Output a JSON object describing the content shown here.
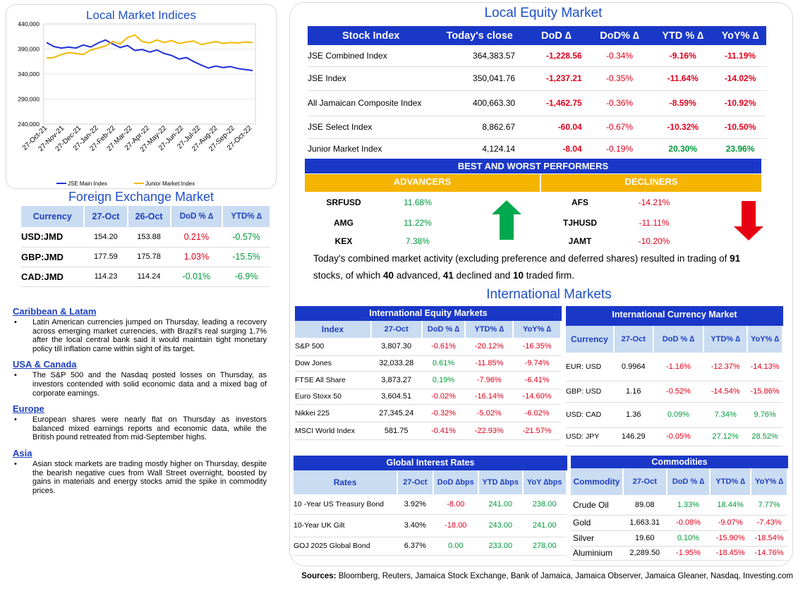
{
  "chart": {
    "title": "Local Market Indices",
    "legend": [
      "JSE Main Index",
      "Junior Market Index"
    ]
  },
  "chart_data": {
    "type": "line",
    "title": "Local Market Indices",
    "ylim": [
      240000,
      440000
    ],
    "y_ticks": [
      "440,000",
      "390,000",
      "340,000",
      "290,000",
      "240,000"
    ],
    "y_tick_values": [
      440000,
      390000,
      340000,
      290000,
      240000
    ],
    "x_ticks": [
      "27-Oct-21",
      "27-Nov-21",
      "27-Dec-21",
      "27-Jan-22",
      "27-Feb-22",
      "27-Mar-22",
      "27-Apr-22",
      "27-May-22",
      "27-Jun-22",
      "27-Jul-22",
      "27-Aug-22",
      "27-Sep-22",
      "27-Oct-22"
    ],
    "series": [
      {
        "name": "JSE Main Index",
        "color": "#1f2fd8",
        "values": [
          403000,
          395000,
          392000,
          394000,
          392000,
          398000,
          394000,
          402000,
          408000,
          400000,
          393000,
          397000,
          387000,
          389000,
          384000,
          388000,
          381000,
          377000,
          370000,
          373000,
          365000,
          358000,
          352000,
          356000,
          353000,
          355000,
          351000,
          349000,
          347000
        ]
      },
      {
        "name": "Junior Market Index",
        "color": "#f5b800",
        "values": [
          372000,
          373000,
          379000,
          383000,
          381000,
          379000,
          388000,
          392000,
          396000,
          405000,
          400000,
          413000,
          418000,
          405000,
          402000,
          408000,
          403000,
          407000,
          401000,
          404000,
          406000,
          399000,
          402000,
          405000,
          401000,
          403000,
          402000,
          404000,
          403000
        ]
      }
    ]
  },
  "fx": {
    "title": "Foreign Exchange Market",
    "headers": [
      "Currency",
      "27-Oct",
      "26-Oct",
      "DoD % ∆",
      "YTD% ∆"
    ],
    "rows": [
      {
        "cur": "USD:JMD",
        "a": "154.20",
        "b": "153.88",
        "dod": "0.21%",
        "ytd": "-0.57%",
        "dod_c": "neg",
        "ytd_c": "pos"
      },
      {
        "cur": "GBP:JMD",
        "a": "177.59",
        "b": "175.78",
        "dod": "1.03%",
        "ytd": "-15.5%",
        "dod_c": "neg",
        "ytd_c": "pos"
      },
      {
        "cur": "CAD:JMD",
        "a": "114.23",
        "b": "114.24",
        "dod": "-0.01%",
        "ytd": "-6.9%",
        "dod_c": "pos",
        "ytd_c": "pos"
      }
    ]
  },
  "news": [
    {
      "heading": "Caribbean & Latam",
      "text": "Latin American currencies jumped on Thursday, leading a recovery across emerging market currencies, with Brazil's real surging 1.7% after the local central bank said it would maintain tight monetary policy till inflation came within sight of its target."
    },
    {
      "heading": "USA & Canada",
      "text": "The S&P 500 and the Nasdaq posted losses on Thursday, as investors contended with solid economic data and a mixed bag of corporate earnings."
    },
    {
      "heading": "Europe",
      "text": "European shares were nearly flat on Thursday as investors balanced mixed earnings reports and economic data, while the British pound retreated from mid-September highs."
    },
    {
      "heading": "Asia",
      "text": "Asian stock markets are trading mostly higher on Thursday, despite the bearish negative cues from Wall Street overnight, boosted by gains in materials and energy stocks amid the spike in commodity prices."
    }
  ],
  "equity": {
    "title": "Local Equity Market",
    "headers": [
      "Stock Index",
      "Today's close",
      "DoD  ∆",
      "DoD% ∆",
      "YTD % ∆",
      "YoY% ∆"
    ],
    "rows": [
      {
        "name": "JSE Combined Index",
        "close": "364,383.57",
        "dod": "-1,228.56",
        "dodp": "-0.34%",
        "ytd": "-9.16%",
        "yoy": "-11.19%",
        "c": [
          "neg",
          "neg",
          "neg",
          "neg"
        ]
      },
      {
        "name": "JSE Index",
        "close": "350,041.76",
        "dod": "-1,237.21",
        "dodp": "-0.35%",
        "ytd": "-11.64%",
        "yoy": "-14.02%",
        "c": [
          "neg",
          "neg",
          "neg",
          "neg"
        ]
      },
      {
        "name": "All Jamaican Composite Index",
        "close": "400,663.30",
        "dod": "-1,462.75",
        "dodp": "-0.36%",
        "ytd": "-8.59%",
        "yoy": "-10.92%",
        "c": [
          "neg",
          "neg",
          "neg",
          "neg"
        ]
      },
      {
        "name": "JSE Select Index",
        "close": "8,862.67",
        "dod": "-60.04",
        "dodp": "-0.67%",
        "ytd": "-10.32%",
        "yoy": "-10.50%",
        "c": [
          "neg",
          "neg",
          "neg",
          "neg"
        ]
      },
      {
        "name": "Junior Market Index",
        "close": "4,124.14",
        "dod": "-8.04",
        "dodp": "-0.19%",
        "ytd": "20.30%",
        "yoy": "23.96%",
        "c": [
          "neg",
          "neg",
          "pos",
          "pos"
        ]
      }
    ]
  },
  "performers": {
    "title": "BEST AND WORST PERFORMERS",
    "adv_label": "ADVANCERS",
    "dec_label": "DECLINERS",
    "advancers": [
      {
        "t": "SRFUSD",
        "v": "11.68%"
      },
      {
        "t": "AMG",
        "v": "11.22%"
      },
      {
        "t": "KEX",
        "v": "7.38%"
      }
    ],
    "decliners": [
      {
        "t": "AFS",
        "v": "-14.21%"
      },
      {
        "t": "TJHUSD",
        "v": "-11.11%"
      },
      {
        "t": "JAMT",
        "v": "-10.20%"
      }
    ]
  },
  "summary": {
    "p1": "Today's combined market activity (excluding preference and deferred shares) resulted in trading of ",
    "n1": "91",
    "p2": "stocks, of which ",
    "n2": "40",
    "p3": " advanced, ",
    "n3": "41",
    "p4": " declined and ",
    "n4": "10",
    "p5": " traded firm."
  },
  "intl": {
    "title": "International Markets",
    "eq_title": "International Equity Markets",
    "eq_headers": [
      "Index",
      "27-Oct",
      "DoD % ∆",
      "YTD% ∆",
      "YoY% ∆"
    ],
    "eq_rows": [
      {
        "n": "S&P 500",
        "v": "3,807.30",
        "d": "-0.61%",
        "y": "-20.12%",
        "yy": "-16.35%",
        "c": [
          "neg",
          "neg",
          "neg"
        ]
      },
      {
        "n": "Dow Jones",
        "v": "32,033.28",
        "d": "0.61%",
        "y": "-11.85%",
        "yy": "-9.74%",
        "c": [
          "pos",
          "neg",
          "neg"
        ]
      },
      {
        "n": "FTSE All Share",
        "v": "3,873.27",
        "d": "0.19%",
        "y": "-7.96%",
        "yy": "-6.41%",
        "c": [
          "pos",
          "neg",
          "neg"
        ]
      },
      {
        "n": "Euro Stoxx 50",
        "v": "3,604.51",
        "d": "-0.02%",
        "y": "-16.14%",
        "yy": "-14.60%",
        "c": [
          "neg",
          "neg",
          "neg"
        ]
      },
      {
        "n": "Nikkei 225",
        "v": "27,345.24",
        "d": "-0.32%",
        "y": "-5.02%",
        "yy": "-6.02%",
        "c": [
          "neg",
          "neg",
          "neg"
        ]
      },
      {
        "n": "MSCI World Index",
        "v": "581.75",
        "d": "-0.41%",
        "y": "-22.93%",
        "yy": "-21.57%",
        "c": [
          "neg",
          "neg",
          "neg"
        ]
      }
    ],
    "cur_title": "International Currency Market",
    "cur_headers": [
      "Currency",
      "27-Oct",
      "DoD % ∆",
      "YTD% ∆",
      "YoY% ∆"
    ],
    "cur_rows": [
      {
        "n": "EUR: USD",
        "v": "0.9964",
        "d": "-1.16%",
        "y": "-12.37%",
        "yy": "-14.13%",
        "c": [
          "neg",
          "neg",
          "neg"
        ]
      },
      {
        "n": "GBP: USD",
        "v": "1.16",
        "d": "-0.52%",
        "y": "-14.54%",
        "yy": "-15.86%",
        "c": [
          "neg",
          "neg",
          "neg"
        ]
      },
      {
        "n": "USD: CAD",
        "v": "1.36",
        "d": "0.09%",
        "y": "7.34%",
        "yy": "9.76%",
        "c": [
          "pos",
          "pos",
          "pos"
        ]
      },
      {
        "n": "USD: JPY",
        "v": "146.29",
        "d": "-0.05%",
        "y": "27.12%",
        "yy": "28.52%",
        "c": [
          "neg",
          "pos",
          "pos"
        ]
      }
    ],
    "rates_title": "Global Interest Rates",
    "rates_headers": [
      "Rates",
      "27-Oct",
      "DoD ∆bps",
      "YTD ∆bps",
      "YoY ∆bps"
    ],
    "rates_rows": [
      {
        "n": "10 -Year US Treasury Bond",
        "v": "3.92%",
        "d": "-8.00",
        "y": "241.00",
        "yy": "238.00",
        "c": [
          "neg",
          "pos",
          "pos"
        ]
      },
      {
        "n": "10-Year UK Gilt",
        "v": "3.40%",
        "d": "-18.00",
        "y": "243.00",
        "yy": "241.00",
        "c": [
          "neg",
          "pos",
          "pos"
        ]
      },
      {
        "n": "GOJ 2025 Global Bond",
        "v": "6.37%",
        "d": "0.00",
        "y": "233.00",
        "yy": "278.00",
        "c": [
          "pos",
          "pos",
          "pos"
        ]
      }
    ],
    "com_title": "Commodities",
    "com_headers": [
      "Commodity",
      "27-Oct",
      "DoD % ∆",
      "YTD% ∆",
      "YoY% ∆"
    ],
    "com_rows": [
      {
        "n": "Crude Oil",
        "v": "89.08",
        "d": "1.33%",
        "y": "18.44%",
        "yy": "7.77%",
        "c": [
          "pos",
          "pos",
          "pos"
        ]
      },
      {
        "n": "Gold",
        "v": "1,663.31",
        "d": "-0.08%",
        "y": "-9.07%",
        "yy": "-7.43%",
        "c": [
          "neg",
          "neg",
          "neg"
        ]
      },
      {
        "n": "Silver",
        "v": "19.60",
        "d": "0.10%",
        "y": "-15.90%",
        "yy": "-18.54%",
        "c": [
          "pos",
          "neg",
          "neg"
        ]
      },
      {
        "n": "Aluminium",
        "v": "2,289.50",
        "d": "-1.95%",
        "y": "-18.45%",
        "yy": "-14.76%",
        "c": [
          "neg",
          "neg",
          "neg"
        ]
      }
    ]
  },
  "sources": {
    "label": "Sources:",
    "text": " Bloomberg, Reuters, Jamaica Stock Exchange, Bank of Jamaica, Jamaica Observer, Jamaica Gleaner, Nasdaq, Investing.com"
  }
}
